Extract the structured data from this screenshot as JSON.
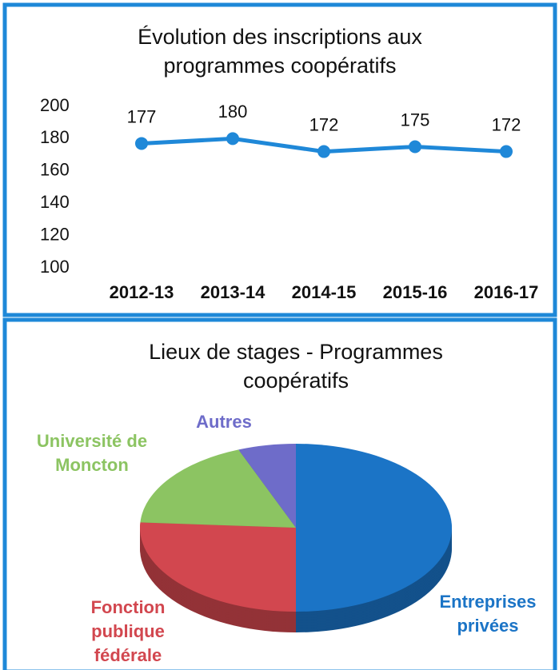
{
  "chart_data": [
    {
      "type": "line",
      "title": "Évolution des inscriptions aux programmes coopératifs",
      "categories": [
        "2012-13",
        "2013-14",
        "2014-15",
        "2015-16",
        "2016-17"
      ],
      "values": [
        177,
        180,
        172,
        175,
        172
      ],
      "color": "#1f88d8",
      "ylim": [
        100,
        200
      ],
      "yticks": [
        100,
        120,
        140,
        160,
        180,
        200
      ]
    },
    {
      "type": "pie",
      "title": "Lieux de stages - Programmes coopératifs",
      "categories": [
        "Entreprises privées",
        "Fonction publique fédérale",
        "Université de Moncton",
        "Autres"
      ],
      "values": [
        50,
        26,
        18,
        6
      ],
      "colors": [
        "#1b74c6",
        "#d2474f",
        "#8cc462",
        "#6e6cc9"
      ]
    }
  ]
}
